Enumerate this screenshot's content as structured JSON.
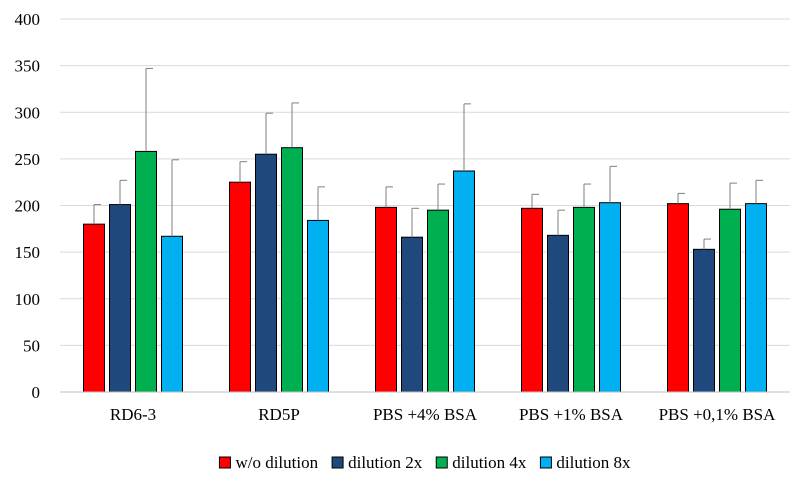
{
  "chart_data": {
    "type": "bar",
    "categories": [
      "RD6-3",
      "RD5P",
      "PBS +4% BSA",
      "PBS +1% BSA",
      "PBS +0,1% BSA"
    ],
    "series": [
      {
        "name": "w/o dilution",
        "color": "#ff0000",
        "values": [
          180,
          225,
          198,
          197,
          202
        ],
        "errors": [
          21,
          22,
          22,
          15,
          11
        ]
      },
      {
        "name": "dilution 2x",
        "color": "#1f497d",
        "values": [
          201,
          255,
          166,
          168,
          153
        ],
        "errors": [
          26,
          44,
          31,
          27,
          11
        ]
      },
      {
        "name": "dilution 4x",
        "color": "#00b050",
        "values": [
          258,
          262,
          195,
          198,
          196
        ],
        "errors": [
          89,
          48,
          28,
          25,
          28
        ]
      },
      {
        "name": "dilution 8x",
        "color": "#00b0f0",
        "values": [
          167,
          184,
          237,
          203,
          202
        ],
        "errors": [
          82,
          36,
          72,
          39,
          25
        ]
      }
    ],
    "yticks": [
      0,
      50,
      100,
      150,
      200,
      250,
      300,
      350,
      400
    ],
    "ylim": [
      0,
      400
    ],
    "grid": true,
    "legend_position": "bottom",
    "title": "",
    "xlabel": "",
    "ylabel": ""
  }
}
